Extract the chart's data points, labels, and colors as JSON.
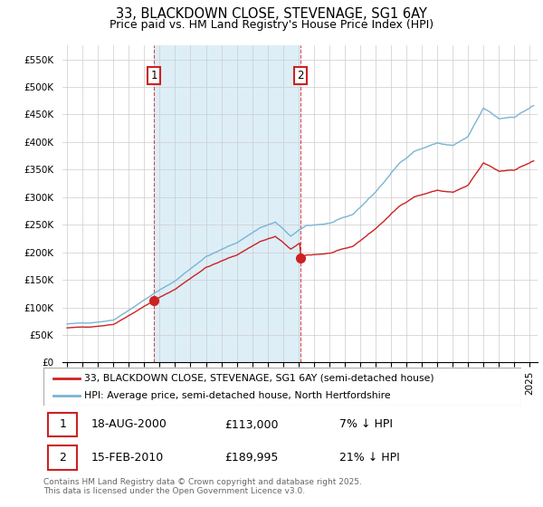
{
  "title": "33, BLACKDOWN CLOSE, STEVENAGE, SG1 6AY",
  "subtitle": "Price paid vs. HM Land Registry's House Price Index (HPI)",
  "legend_line1": "33, BLACKDOWN CLOSE, STEVENAGE, SG1 6AY (semi-detached house)",
  "legend_line2": "HPI: Average price, semi-detached house, North Hertfordshire",
  "footer": "Contains HM Land Registry data © Crown copyright and database right 2025.\nThis data is licensed under the Open Government Licence v3.0.",
  "annotation1_date": "18-AUG-2000",
  "annotation1_price": "£113,000",
  "annotation1_hpi": "7% ↓ HPI",
  "annotation2_date": "15-FEB-2010",
  "annotation2_price": "£189,995",
  "annotation2_hpi": "21% ↓ HPI",
  "red_color": "#cc2222",
  "blue_color": "#7ab4d4",
  "shade_color": "#ddeef7",
  "ylim": [
    0,
    575000
  ],
  "yticks": [
    0,
    50000,
    100000,
    150000,
    200000,
    250000,
    300000,
    350000,
    400000,
    450000,
    500000,
    550000
  ],
  "ytick_labels": [
    "£0",
    "£50K",
    "£100K",
    "£150K",
    "£200K",
    "£250K",
    "£300K",
    "£350K",
    "£400K",
    "£450K",
    "£500K",
    "£550K"
  ],
  "xmin": 1994.7,
  "xmax": 2025.5,
  "sale1_year": 2000.625,
  "sale1_price": 113000,
  "sale2_year": 2010.125,
  "sale2_price": 189995
}
